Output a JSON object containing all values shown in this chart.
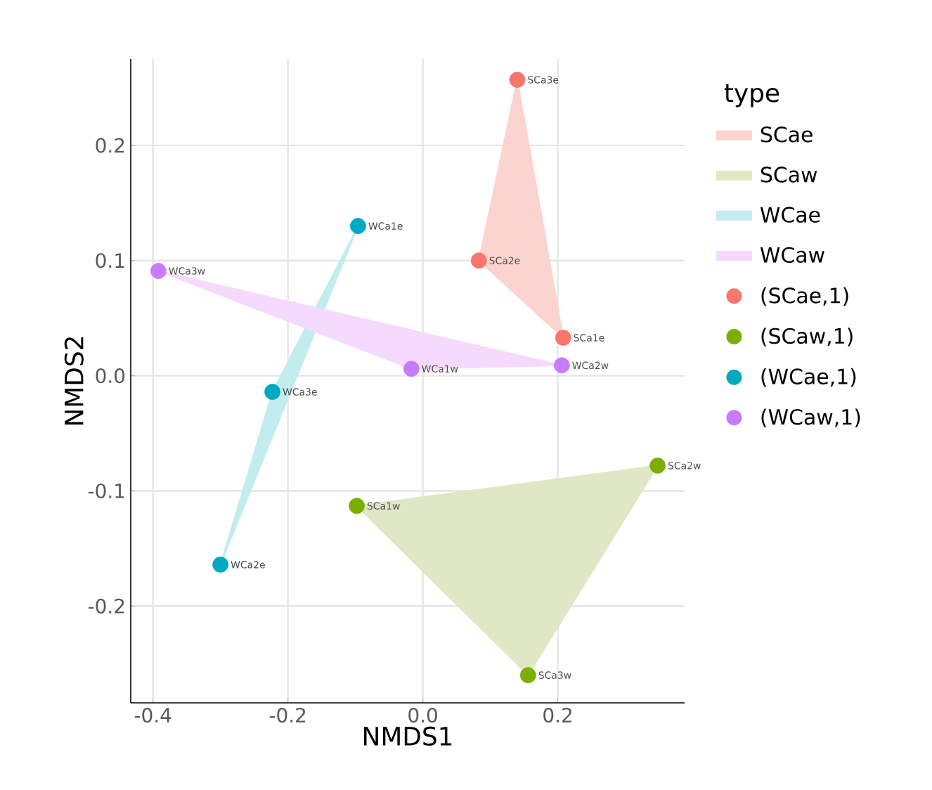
{
  "chart_data": {
    "type": "scatter",
    "xlabel": "NMDS1",
    "ylabel": "NMDS2",
    "legend_title": "type",
    "legend": "right",
    "grid": true,
    "marker": "circle",
    "xlim": [
      -0.433,
      0.388
    ],
    "ylim": [
      -0.284,
      0.275
    ],
    "xticks": [
      -0.4,
      -0.2,
      {
        "value": 0,
        "label": "0.0"
      },
      0.2
    ],
    "yticks": [
      -0.2,
      -0.1,
      {
        "value": 0,
        "label": "0.0"
      },
      0.1,
      0.2
    ],
    "series": [
      {
        "type": "area",
        "marker": "none",
        "name": "SCae",
        "color": "#fbd3cf",
        "x": [
          0.14,
          0.083,
          0.208
        ],
        "values": [
          0.257,
          0.1,
          0.033
        ]
      },
      {
        "type": "area",
        "marker": "none",
        "name": "SCaw",
        "color": "#dfe7c4",
        "x": [
          -0.098,
          0.348,
          0.156
        ],
        "values": [
          -0.113,
          -0.078,
          -0.26
        ]
      },
      {
        "type": "area",
        "marker": "none",
        "name": "WCae",
        "color": "#c3ecef",
        "x": [
          -0.096,
          -0.223,
          -0.3
        ],
        "values": [
          0.13,
          -0.014,
          -0.164
        ]
      },
      {
        "type": "area",
        "marker": "none",
        "name": "WCaw",
        "color": "#f6dafd",
        "x": [
          -0.392,
          -0.017,
          0.206
        ],
        "values": [
          0.091,
          0.006,
          0.009
        ]
      },
      {
        "name": "(SCae,1)",
        "color": "#f8766d",
        "x": [
          0.208,
          0.083,
          0.14
        ],
        "values": [
          0.033,
          0.1,
          0.257
        ]
      },
      {
        "name": "(SCaw,1)",
        "color": "#7cae00",
        "x": [
          -0.098,
          0.348,
          0.156
        ],
        "values": [
          -0.113,
          -0.078,
          -0.26
        ]
      },
      {
        "name": "(WCae,1)",
        "color": "#00a9c0",
        "x": [
          -0.096,
          -0.3,
          -0.223
        ],
        "values": [
          0.13,
          -0.164,
          -0.014
        ]
      },
      {
        "name": "(WCaw,1)",
        "color": "#c77cff",
        "x": [
          -0.017,
          0.206,
          -0.392
        ],
        "values": [
          0.006,
          0.009,
          0.091
        ]
      }
    ],
    "annotations": [
      {
        "text": "SCa1e",
        "x": 0.208,
        "y": 0.033
      },
      {
        "text": "SCa2e",
        "x": 0.083,
        "y": 0.1
      },
      {
        "text": "SCa3e",
        "x": 0.14,
        "y": 0.257
      },
      {
        "text": "SCa1w",
        "x": -0.098,
        "y": -0.113
      },
      {
        "text": "SCa2w",
        "x": 0.348,
        "y": -0.078
      },
      {
        "text": "SCa3w",
        "x": 0.156,
        "y": -0.26
      },
      {
        "text": "WCa1e",
        "x": -0.096,
        "y": 0.13
      },
      {
        "text": "WCa2e",
        "x": -0.3,
        "y": -0.164
      },
      {
        "text": "WCa3e",
        "x": -0.223,
        "y": -0.014
      },
      {
        "text": "WCa1w",
        "x": -0.017,
        "y": 0.006
      },
      {
        "text": "WCa2w",
        "x": 0.206,
        "y": 0.009
      },
      {
        "text": "WCa3w",
        "x": -0.392,
        "y": 0.091
      }
    ]
  }
}
